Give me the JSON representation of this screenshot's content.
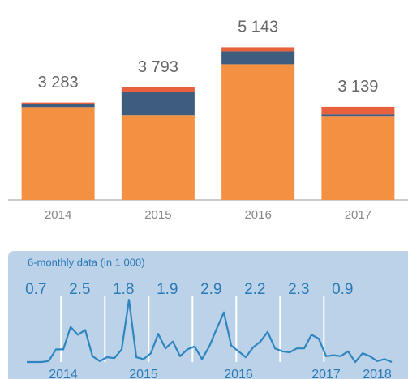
{
  "chart_data": [
    {
      "type": "bar",
      "stacked": true,
      "categories": [
        "2014",
        "2015",
        "2016",
        "2017"
      ],
      "series": [
        {
          "color": "#f39041",
          "values": [
            3128,
            2857,
            4571,
            2830
          ]
        },
        {
          "color": "#3e5c7e",
          "values": [
            109,
            789,
            435,
            54
          ]
        },
        {
          "color": "#e8603c",
          "values": [
            46,
            147,
            137,
            255
          ]
        }
      ],
      "totals": [
        3283,
        3793,
        5143,
        3139
      ],
      "total_labels": [
        "3 283",
        "3 793",
        "5 143",
        "3 139"
      ],
      "ylim": [
        0,
        6000
      ]
    },
    {
      "type": "line",
      "title": "6-monthly data (in 1 000)",
      "color": "#2e86c1",
      "values": [
        0,
        0,
        0,
        0.01,
        0.13,
        0.13,
        0.36,
        0.28,
        0.33,
        0.06,
        0.01,
        0.05,
        0.04,
        0.13,
        0.64,
        0.05,
        0.03,
        0.09,
        0.29,
        0.14,
        0.21,
        0.06,
        0.13,
        0.16,
        0.03,
        0.16,
        0.34,
        0.51,
        0.17,
        0.11,
        0.05,
        0.15,
        0.21,
        0.31,
        0.14,
        0.11,
        0.1,
        0.14,
        0.14,
        0.28,
        0.24,
        0.06,
        0.07,
        0.06,
        0.11,
        0,
        0.09,
        0.06,
        0.01,
        0.03,
        0
      ],
      "xlim": [
        0,
        50
      ],
      "ylim": [
        0,
        0.8
      ],
      "xticks": [
        {
          "value": 5,
          "label": "2014"
        },
        {
          "value": 16,
          "label": "2015"
        },
        {
          "value": 29,
          "label": "2016"
        },
        {
          "value": 41,
          "label": "2017"
        },
        {
          "value": 48,
          "label": "2018"
        }
      ],
      "period_values": [
        0.7,
        2.5,
        1.8,
        1.9,
        2.9,
        2.2,
        2.3,
        0.9
      ]
    }
  ]
}
